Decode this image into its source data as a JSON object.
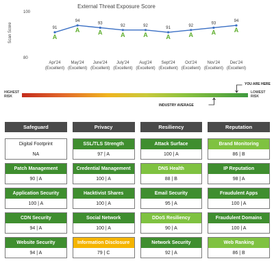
{
  "chart_data": {
    "type": "line",
    "title": "External Threat Exposure Score",
    "ylabel": "Scan Score",
    "ylim": [
      80,
      100
    ],
    "yticks": [
      80,
      100
    ],
    "categories": [
      "Apr'24",
      "May'24",
      "June'24",
      "July'24",
      "Aug'24",
      "Sept'24",
      "Oct'24",
      "Nov'24",
      "Dec'24"
    ],
    "category_grades": [
      "(Excellent)",
      "(Excellent)",
      "(Excellent)",
      "(Excellent)",
      "(Excellent)",
      "(Excellent)",
      "(Excellent)",
      "(Excellent)",
      "(Excellent)"
    ],
    "values": [
      91,
      94,
      93,
      92,
      92,
      91,
      92,
      93,
      94
    ],
    "grades": [
      "A",
      "A",
      "A",
      "A",
      "A",
      "A",
      "A",
      "A",
      "A"
    ],
    "line_color": "#3a6fc4",
    "grade_color": "#5fae2e"
  },
  "gauge": {
    "left_label_1": "HIGHEST",
    "left_label_2": "RISK",
    "right_label_1": "LOWEST",
    "right_label_2": "RISK",
    "you_are_here": "YOU ARE HERE",
    "industry_average": "INDUSTRY AVERAGE",
    "you_position": 0.95,
    "industry_position": 0.85
  },
  "categories": [
    {
      "name": "Safeguard",
      "items": [
        {
          "title": "Digital Footprint",
          "score": "NA",
          "style": "white"
        },
        {
          "title": "Patch Management",
          "score": "90 | A",
          "style": "dark"
        },
        {
          "title": "Application Security",
          "score": "100 | A",
          "style": "dark"
        },
        {
          "title": "CDN Security",
          "score": "94 | A",
          "style": "dark"
        },
        {
          "title": "Website Security",
          "score": "94 | A",
          "style": "dark"
        }
      ]
    },
    {
      "name": "Privacy",
      "items": [
        {
          "title": "SSL/TLS Strength",
          "score": "97 | A",
          "style": "dark"
        },
        {
          "title": "Credential Management",
          "score": "100 | A",
          "style": "dark"
        },
        {
          "title": "Hacktivist Shares",
          "score": "100 | A",
          "style": "dark"
        },
        {
          "title": "Social Network",
          "score": "100 | A",
          "style": "dark"
        },
        {
          "title": "Information Disclosure",
          "score": "79 | C",
          "style": "yellow"
        }
      ]
    },
    {
      "name": "Resiliency",
      "items": [
        {
          "title": "Attack Surface",
          "score": "100 | A",
          "style": "dark"
        },
        {
          "title": "DNS Health",
          "score": "88 | B",
          "style": "light"
        },
        {
          "title": "Email Security",
          "score": "95 | A",
          "style": "dark"
        },
        {
          "title": "DDoS Resiliency",
          "score": "90 | A",
          "style": "light"
        },
        {
          "title": "Network Security",
          "score": "92 | A",
          "style": "dark"
        }
      ]
    },
    {
      "name": "Reputation",
      "items": [
        {
          "title": "Brand Monitoring",
          "score": "86 | B",
          "style": "light"
        },
        {
          "title": "IP Reputation",
          "score": "98 | A",
          "style": "dark"
        },
        {
          "title": "Fraudulent Apps",
          "score": "100 | A",
          "style": "dark"
        },
        {
          "title": "Fraudulent Domains",
          "score": "100 | A",
          "style": "dark"
        },
        {
          "title": "Web Ranking",
          "score": "86 | B",
          "style": "light"
        }
      ]
    }
  ]
}
